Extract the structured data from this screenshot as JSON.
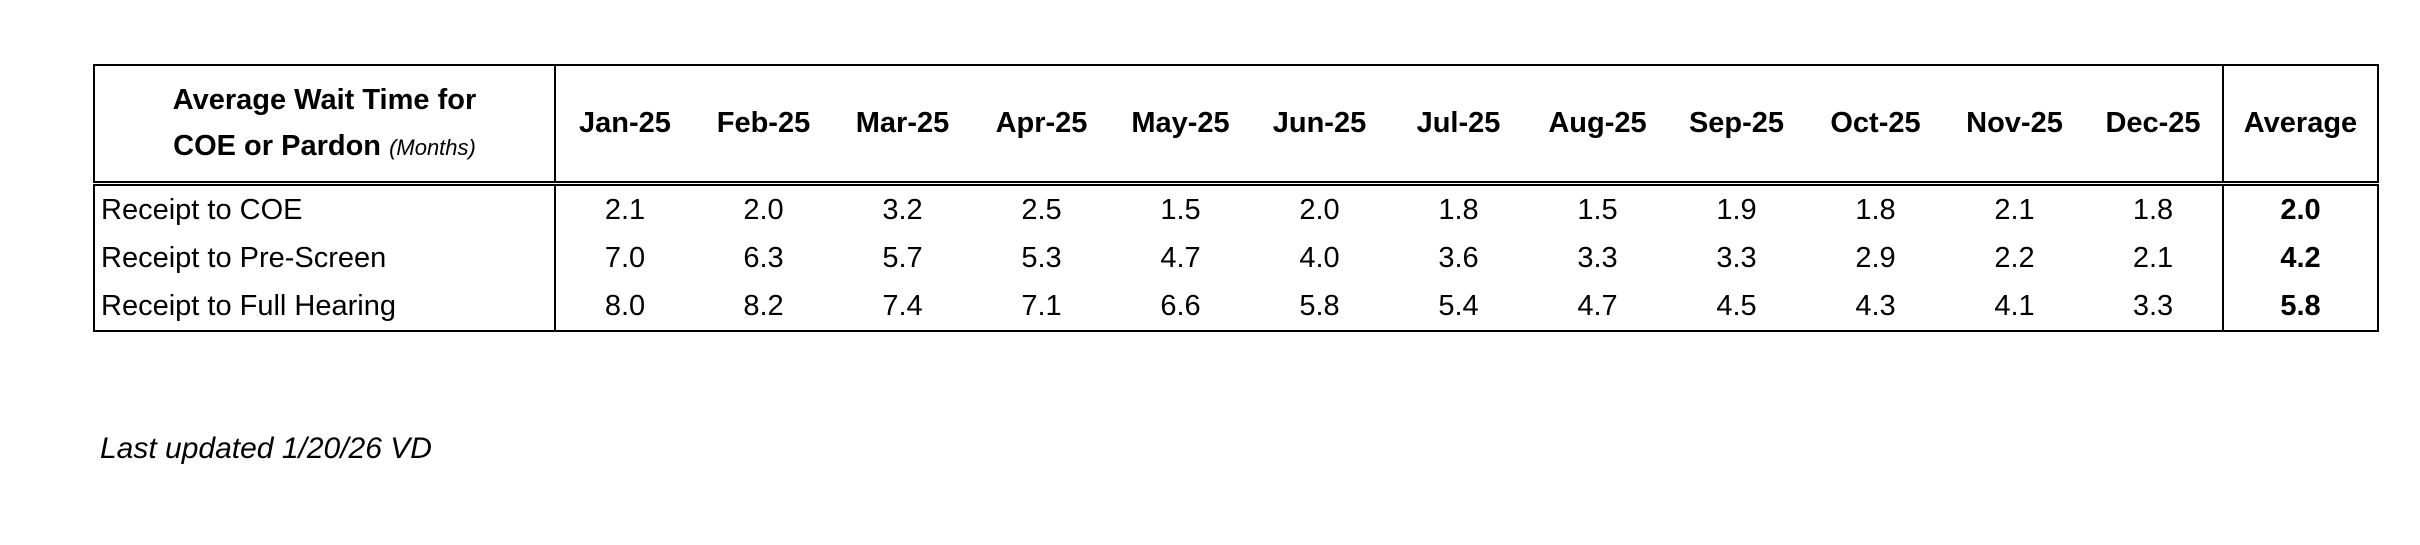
{
  "table": {
    "title_line1": "Average Wait Time for",
    "title_line2": "COE or Pardon",
    "title_note": "(Months)",
    "months": [
      "Jan-25",
      "Feb-25",
      "Mar-25",
      "Apr-25",
      "May-25",
      "Jun-25",
      "Jul-25",
      "Aug-25",
      "Sep-25",
      "Oct-25",
      "Nov-25",
      "Dec-25"
    ],
    "average_header": "Average",
    "rows": [
      {
        "label": "Receipt to COE",
        "values": [
          "2.1",
          "2.0",
          "3.2",
          "2.5",
          "1.5",
          "2.0",
          "1.8",
          "1.5",
          "1.9",
          "1.8",
          "2.1",
          "1.8"
        ],
        "average": "2.0"
      },
      {
        "label": "Receipt to Pre-Screen",
        "values": [
          "7.0",
          "6.3",
          "5.7",
          "5.3",
          "4.7",
          "4.0",
          "3.6",
          "3.3",
          "3.3",
          "2.9",
          "2.2",
          "2.1"
        ],
        "average": "4.2"
      },
      {
        "label": "Receipt to Full Hearing",
        "values": [
          "8.0",
          "8.2",
          "7.4",
          "7.1",
          "6.6",
          "5.8",
          "5.4",
          "4.7",
          "4.5",
          "4.3",
          "4.1",
          "3.3"
        ],
        "average": "5.8"
      }
    ]
  },
  "footnote": "Last updated 1/20/26 VD"
}
